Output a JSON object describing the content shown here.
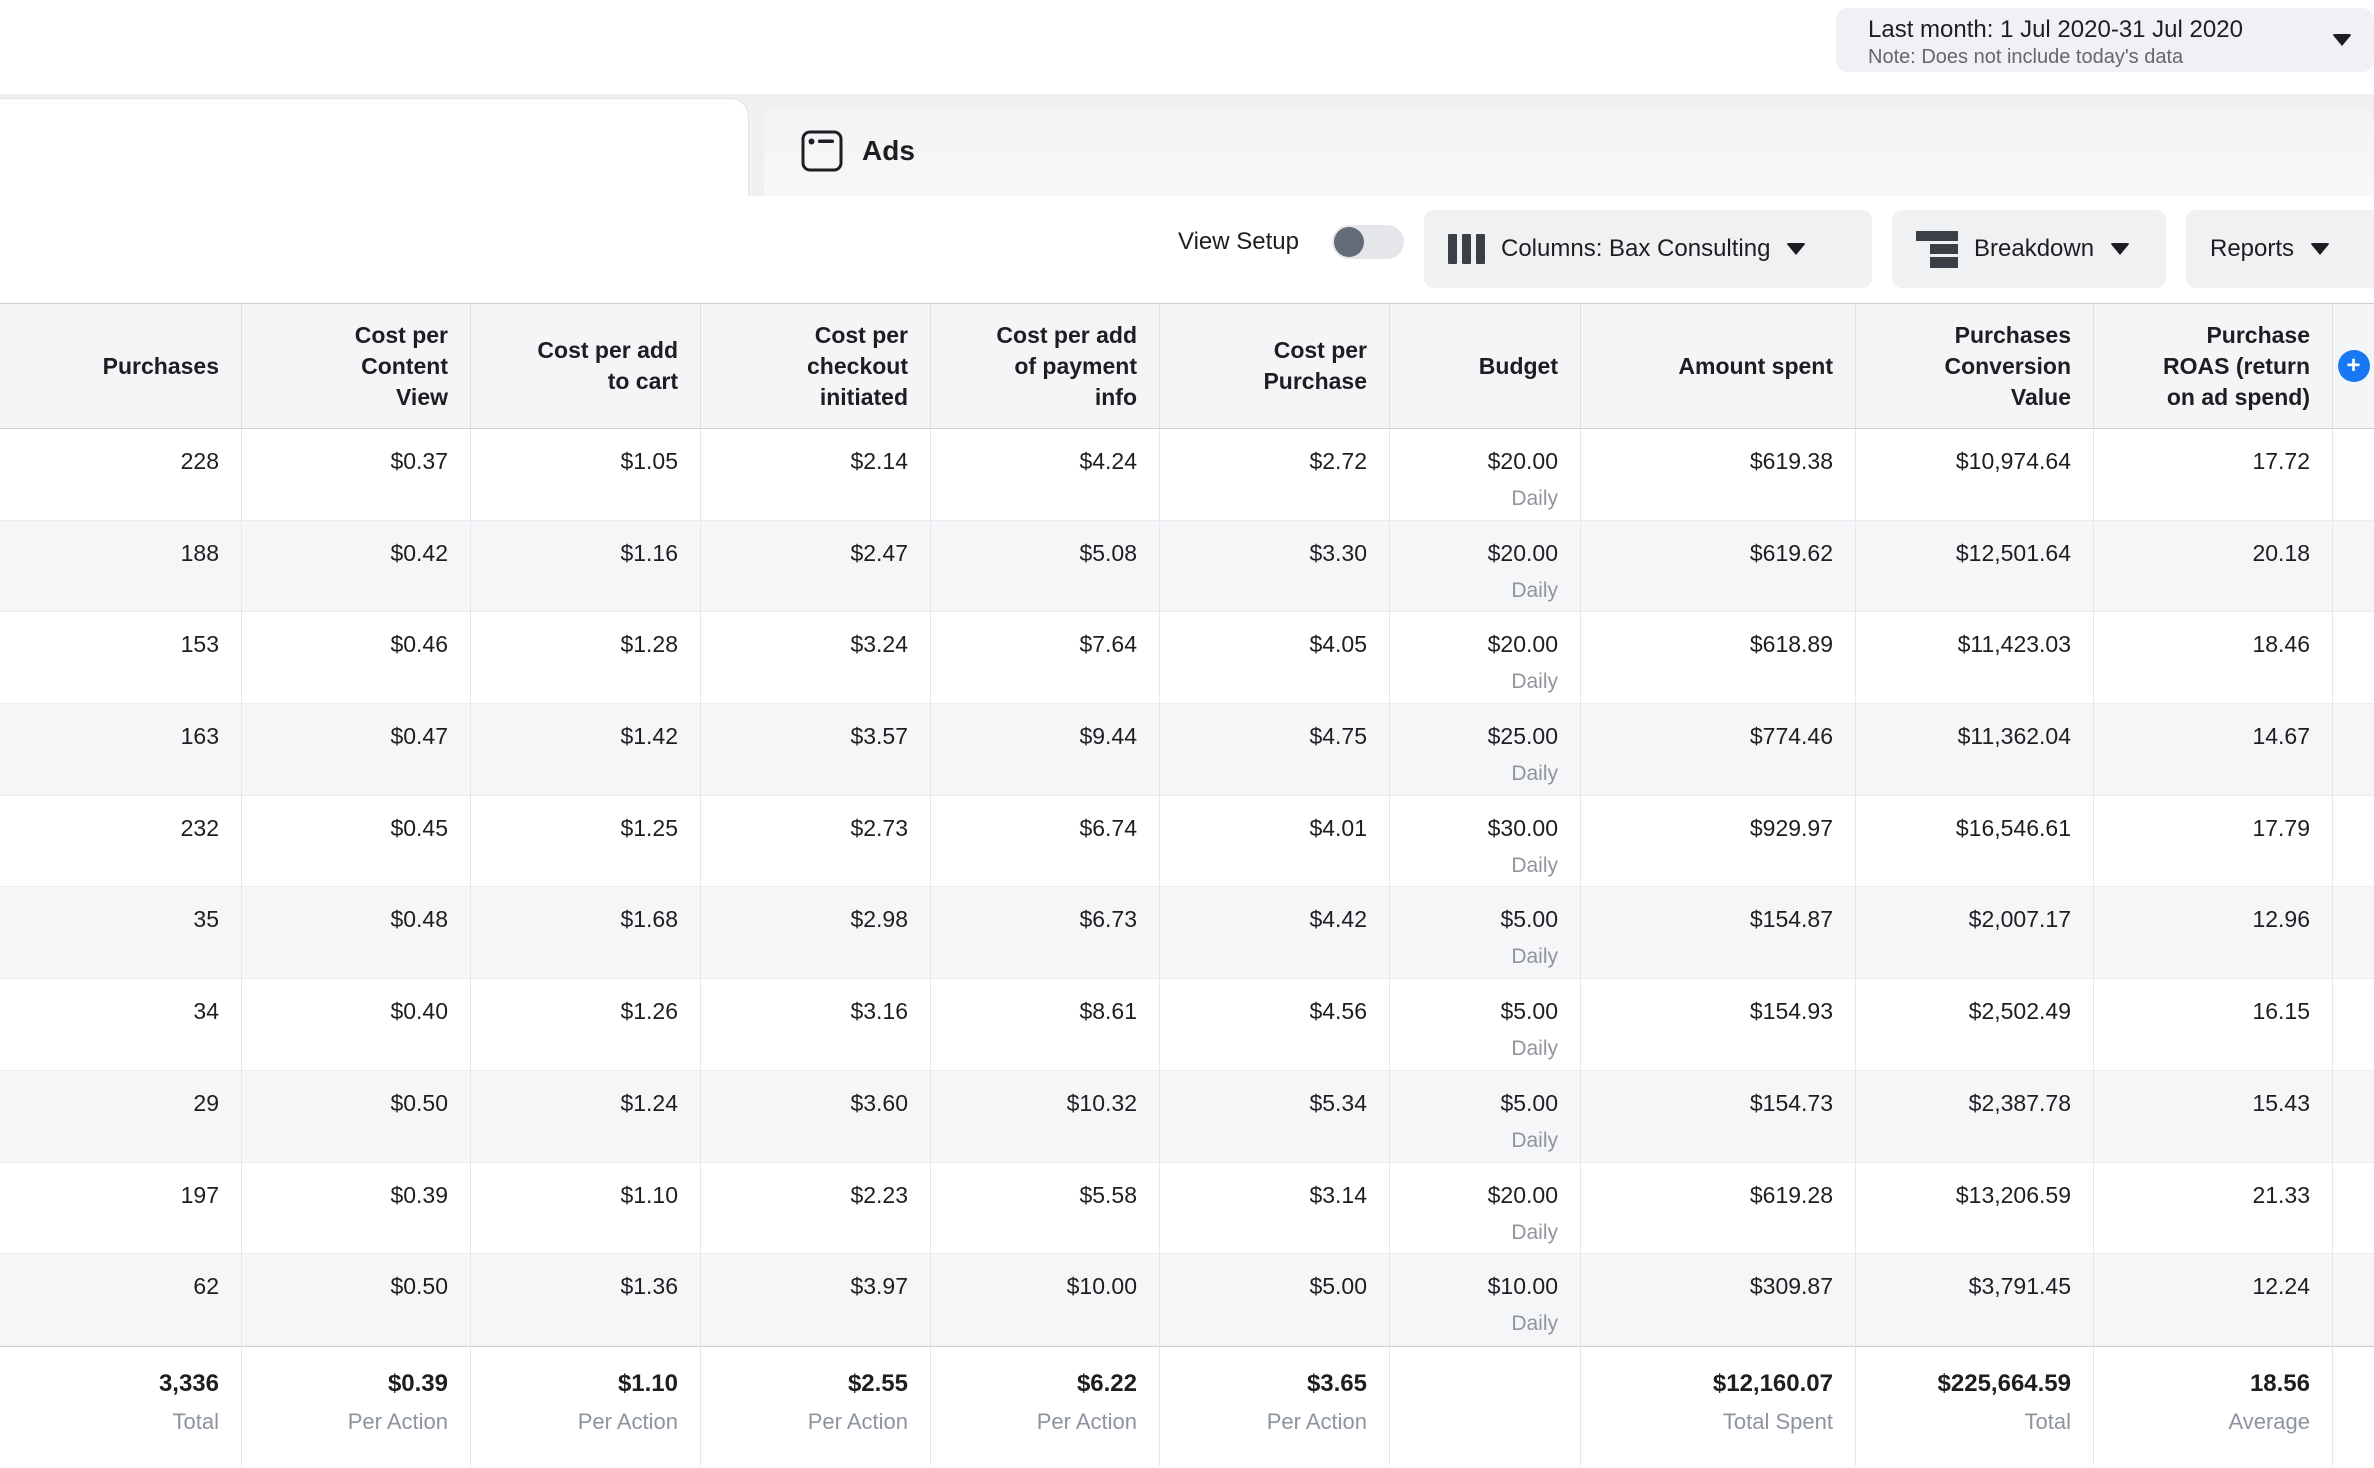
{
  "colors": {
    "accent_blue": "#1877f2",
    "text_dark": "#1c1e21",
    "text_gray": "#8d949e",
    "row_alt_bg": "#f5f6f7",
    "button_bg": "#f0f1f3"
  },
  "date_selector": {
    "label": "Last month: 1 Jul 2020-31 Jul 2020",
    "note": "Note: Does not include today's data"
  },
  "tabs": {
    "ads_label": "Ads"
  },
  "toolbar": {
    "view_setup_label": "View Setup",
    "columns_label": "Columns: Bax Consulting",
    "breakdown_label": "Breakdown",
    "reports_label": "Reports"
  },
  "table": {
    "columns": [
      {
        "key": "purchases",
        "label": "Purchases"
      },
      {
        "key": "cost_per_content_view",
        "label": "Cost per\nContent\nView"
      },
      {
        "key": "cost_per_add_to_cart",
        "label": "Cost per add\nto cart"
      },
      {
        "key": "cost_per_checkout_initiated",
        "label": "Cost per\ncheckout\ninitiated"
      },
      {
        "key": "cost_per_add_of_payment_info",
        "label": "Cost per add\nof payment\ninfo"
      },
      {
        "key": "cost_per_purchase",
        "label": "Cost per\nPurchase"
      },
      {
        "key": "budget",
        "label": "Budget",
        "row_sublabel": "Daily"
      },
      {
        "key": "amount_spent",
        "label": "Amount spent"
      },
      {
        "key": "purchases_conversion_value",
        "label": "Purchases\nConversion\nValue"
      },
      {
        "key": "purchase_roas",
        "label": "Purchase\nROAS (return\non ad spend)"
      }
    ],
    "add_column_icon": "plus-circle",
    "rows": [
      [
        "228",
        "$0.37",
        "$1.05",
        "$2.14",
        "$4.24",
        "$2.72",
        "$20.00",
        "$619.38",
        "$10,974.64",
        "17.72"
      ],
      [
        "188",
        "$0.42",
        "$1.16",
        "$2.47",
        "$5.08",
        "$3.30",
        "$20.00",
        "$619.62",
        "$12,501.64",
        "20.18"
      ],
      [
        "153",
        "$0.46",
        "$1.28",
        "$3.24",
        "$7.64",
        "$4.05",
        "$20.00",
        "$618.89",
        "$11,423.03",
        "18.46"
      ],
      [
        "163",
        "$0.47",
        "$1.42",
        "$3.57",
        "$9.44",
        "$4.75",
        "$25.00",
        "$774.46",
        "$11,362.04",
        "14.67"
      ],
      [
        "232",
        "$0.45",
        "$1.25",
        "$2.73",
        "$6.74",
        "$4.01",
        "$30.00",
        "$929.97",
        "$16,546.61",
        "17.79"
      ],
      [
        "35",
        "$0.48",
        "$1.68",
        "$2.98",
        "$6.73",
        "$4.42",
        "$5.00",
        "$154.87",
        "$2,007.17",
        "12.96"
      ],
      [
        "34",
        "$0.40",
        "$1.26",
        "$3.16",
        "$8.61",
        "$4.56",
        "$5.00",
        "$154.93",
        "$2,502.49",
        "16.15"
      ],
      [
        "29",
        "$0.50",
        "$1.24",
        "$3.60",
        "$10.32",
        "$5.34",
        "$5.00",
        "$154.73",
        "$2,387.78",
        "15.43"
      ],
      [
        "197",
        "$0.39",
        "$1.10",
        "$2.23",
        "$5.58",
        "$3.14",
        "$20.00",
        "$619.28",
        "$13,206.59",
        "21.33"
      ],
      [
        "62",
        "$0.50",
        "$1.36",
        "$3.97",
        "$10.00",
        "$5.00",
        "$10.00",
        "$309.87",
        "$3,791.45",
        "12.24"
      ]
    ],
    "totals": [
      {
        "value": "3,336",
        "caption": "Total"
      },
      {
        "value": "$0.39",
        "caption": "Per Action"
      },
      {
        "value": "$1.10",
        "caption": "Per Action"
      },
      {
        "value": "$2.55",
        "caption": "Per Action"
      },
      {
        "value": "$6.22",
        "caption": "Per Action"
      },
      {
        "value": "$3.65",
        "caption": "Per Action"
      },
      {
        "value": "",
        "caption": ""
      },
      {
        "value": "$12,160.07",
        "caption": "Total Spent"
      },
      {
        "value": "$225,664.59",
        "caption": "Total"
      },
      {
        "value": "18.56",
        "caption": "Average"
      }
    ]
  }
}
